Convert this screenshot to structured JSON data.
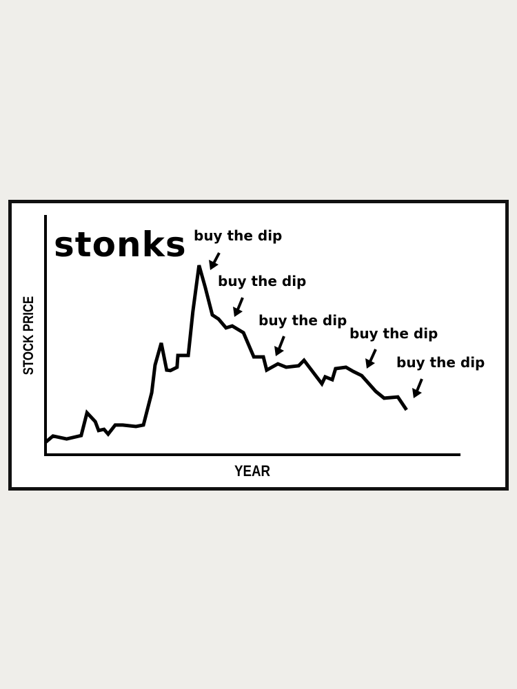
{
  "chart_data": {
    "type": "line",
    "title": "stonks",
    "xlabel": "YEAR",
    "ylabel": "STOCK PRICE",
    "grid": false,
    "tick_labels": false,
    "line_color": "#000000",
    "x": [
      0,
      1.8,
      5.1,
      8.6,
      10.0,
      12.0,
      12.8,
      14.1,
      15.1,
      16.8,
      18.6,
      21.8,
      23.6,
      25.6,
      26.4,
      27.9,
      29.2,
      30.1,
      31.7,
      31.9,
      34.4,
      35.5,
      37.0,
      38.5,
      40.2,
      41.7,
      43.5,
      45.0,
      47.7,
      50.2,
      52.5,
      53.3,
      56.0,
      58.0,
      61.0,
      62.3,
      66.6,
      67.4,
      69.1,
      69.9,
      72.4,
      74.1,
      76.2,
      79.6,
      81.6,
      84.9,
      87.0
    ],
    "y": [
      5.2,
      7.8,
      6.6,
      8.0,
      17.5,
      13.8,
      10.1,
      10.6,
      8.6,
      12.4,
      12.4,
      11.8,
      12.4,
      25.9,
      37.4,
      46.6,
      35.3,
      35.1,
      36.5,
      41.4,
      41.4,
      59.5,
      79.0,
      69.8,
      58.3,
      56.6,
      52.9,
      53.7,
      50.9,
      40.8,
      40.8,
      35.3,
      37.9,
      36.5,
      37.1,
      39.4,
      29.6,
      32.5,
      31.3,
      35.9,
      36.5,
      34.8,
      33.0,
      26.4,
      23.6,
      24.1,
      18.7
    ],
    "xlim": [
      0,
      100
    ],
    "ylim": [
      0,
      100
    ],
    "annotations": [
      {
        "text": "buy the dip",
        "x": 37.0
      },
      {
        "text": "buy the dip",
        "x": 45.0
      },
      {
        "text": "buy the dip",
        "x": 55.0
      },
      {
        "text": "buy the dip",
        "x": 77.0
      },
      {
        "text": "buy the dip",
        "x": 89.0
      }
    ]
  }
}
